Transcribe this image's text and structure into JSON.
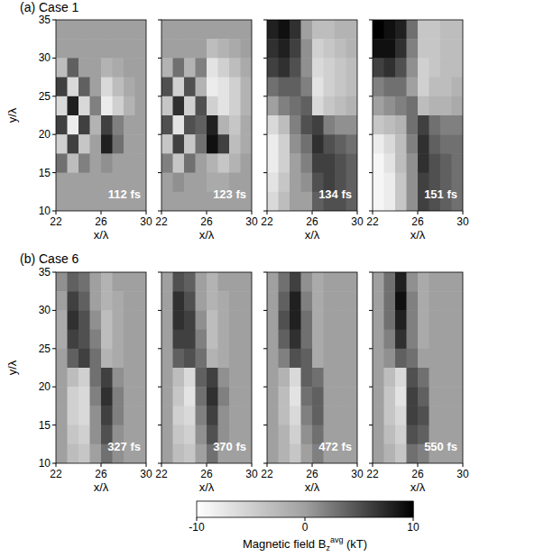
{
  "chart_data": {
    "type": "heatmap",
    "xlabel": "x/λ",
    "ylabel": "y/λ",
    "xlim": [
      22,
      30
    ],
    "xticks": [
      22,
      26,
      30
    ],
    "ylim": [
      10,
      35
    ],
    "yticks": [
      10,
      15,
      20,
      25,
      30,
      35
    ],
    "colorbar": {
      "range": [
        -10,
        10
      ],
      "ticks": [
        -10,
        0,
        10
      ],
      "label": {
        "text": "Magnetic field B",
        "sub": "z",
        "sup": "avg",
        "unit": " (kT)"
      }
    },
    "groups": [
      {
        "title": "(a) Case 1",
        "panels": [
          {
            "label": "112 fs",
            "cells": [
              [
                0,
                0,
                0,
                0,
                0,
                0,
                0,
                0
              ],
              [
                0,
                0,
                0,
                0,
                0,
                0,
                0,
                0
              ],
              [
                -3,
                4,
                0,
                0,
                -2,
                -1,
                0,
                0
              ],
              [
                6,
                -6,
                4,
                0,
                -6,
                -3,
                -1,
                0
              ],
              [
                -6,
                8,
                -6,
                2,
                -8,
                -5,
                -2,
                0
              ],
              [
                6,
                -8,
                6,
                -2,
                6,
                2,
                0,
                0
              ],
              [
                -5,
                6,
                -4,
                0,
                8,
                3,
                0,
                0
              ],
              [
                3,
                -3,
                2,
                0,
                1,
                0,
                0,
                0
              ],
              [
                0,
                0,
                0,
                0,
                0,
                0,
                0,
                0
              ],
              [
                0,
                0,
                0,
                0,
                0,
                0,
                0,
                0
              ]
            ]
          },
          {
            "label": "123 fs",
            "cells": [
              [
                0,
                0,
                0,
                0,
                0,
                0,
                0,
                0
              ],
              [
                0,
                0,
                0,
                0,
                -3,
                -2,
                -1,
                0
              ],
              [
                -2,
                3,
                -2,
                2,
                -7,
                -5,
                -3,
                -1
              ],
              [
                5,
                -5,
                5,
                -2,
                -8,
                -7,
                -5,
                -2
              ],
              [
                -4,
                7,
                -5,
                5,
                -5,
                -7,
                -5,
                -2
              ],
              [
                5,
                -7,
                5,
                4,
                8,
                -2,
                -4,
                -1
              ],
              [
                -4,
                6,
                -4,
                3,
                9,
                6,
                -3,
                -1
              ],
              [
                2,
                -4,
                3,
                0,
                -2,
                -4,
                -2,
                0
              ],
              [
                0,
                1,
                0,
                0,
                -1,
                -1,
                0,
                0
              ],
              [
                0,
                0,
                0,
                0,
                0,
                0,
                0,
                0
              ]
            ]
          },
          {
            "label": "134 fs",
            "cells": [
              [
                8,
                9,
                7,
                0,
                -3,
                -3,
                -2,
                -2
              ],
              [
                7,
                8,
                6,
                1,
                -5,
                -4,
                -3,
                -2
              ],
              [
                6,
                7,
                5,
                1,
                -6,
                -5,
                -4,
                -3
              ],
              [
                3,
                4,
                4,
                2,
                -7,
                -5,
                -4,
                -3
              ],
              [
                0,
                2,
                3,
                4,
                -6,
                -4,
                -3,
                -2
              ],
              [
                -6,
                -3,
                2,
                5,
                6,
                2,
                1,
                1
              ],
              [
                -8,
                -5,
                1,
                3,
                7,
                5,
                4,
                3
              ],
              [
                -8,
                -5,
                0,
                2,
                6,
                6,
                5,
                4
              ],
              [
                -7,
                -4,
                0,
                1,
                5,
                6,
                5,
                4
              ],
              [
                -6,
                -3,
                0,
                0,
                4,
                5,
                5,
                4
              ]
            ]
          },
          {
            "label": "151 fs",
            "cells": [
              [
                10,
                9,
                8,
                3,
                -4,
                -4,
                -3,
                -3
              ],
              [
                9,
                9,
                7,
                2,
                -4,
                -4,
                -3,
                -3
              ],
              [
                6,
                7,
                5,
                1,
                -5,
                -4,
                -3,
                -3
              ],
              [
                2,
                3,
                3,
                0,
                -5,
                -3,
                -3,
                -2
              ],
              [
                0,
                1,
                2,
                3,
                -3,
                -2,
                -2,
                -1
              ],
              [
                -4,
                -3,
                -2,
                3,
                6,
                3,
                2,
                2
              ],
              [
                -8,
                -6,
                -3,
                2,
                7,
                4,
                3,
                3
              ],
              [
                -9,
                -7,
                -3,
                1,
                7,
                5,
                4,
                3
              ],
              [
                -9,
                -8,
                -4,
                1,
                6,
                5,
                4,
                3
              ],
              [
                -9,
                -8,
                -4,
                1,
                6,
                5,
                4,
                3
              ]
            ]
          }
        ]
      },
      {
        "title": "(b) Case 6",
        "panels": [
          {
            "label": "327 fs",
            "cells": [
              [
                1,
                4,
                3,
                0,
                -2,
                0,
                0,
                0
              ],
              [
                0,
                6,
                4,
                0,
                -2,
                -1,
                0,
                0
              ],
              [
                -1,
                7,
                5,
                1,
                -3,
                -1,
                0,
                0
              ],
              [
                -1,
                6,
                5,
                2,
                -3,
                -1,
                0,
                0
              ],
              [
                0,
                4,
                6,
                3,
                -2,
                -1,
                0,
                0
              ],
              [
                0,
                -3,
                -5,
                3,
                6,
                1,
                0,
                0
              ],
              [
                0,
                -5,
                -6,
                2,
                7,
                2,
                0,
                0
              ],
              [
                0,
                -5,
                -6,
                1,
                6,
                2,
                0,
                0
              ],
              [
                0,
                -4,
                -5,
                1,
                5,
                1,
                0,
                0
              ],
              [
                0,
                -3,
                -4,
                0,
                3,
                1,
                0,
                0
              ]
            ]
          },
          {
            "label": "370 fs",
            "cells": [
              [
                0,
                5,
                4,
                0,
                -2,
                0,
                0,
                0
              ],
              [
                0,
                7,
                5,
                0,
                -2,
                -1,
                0,
                0
              ],
              [
                0,
                7,
                6,
                1,
                -3,
                -1,
                0,
                0
              ],
              [
                0,
                6,
                6,
                2,
                -3,
                -1,
                0,
                0
              ],
              [
                0,
                4,
                5,
                3,
                -2,
                -1,
                0,
                0
              ],
              [
                0,
                -3,
                -6,
                4,
                6,
                1,
                0,
                0
              ],
              [
                0,
                -4,
                -7,
                3,
                7,
                2,
                0,
                0
              ],
              [
                0,
                -5,
                -6,
                2,
                6,
                1,
                0,
                0
              ],
              [
                0,
                -4,
                -5,
                1,
                5,
                1,
                0,
                0
              ],
              [
                0,
                -3,
                -4,
                0,
                3,
                0,
                0,
                0
              ]
            ]
          },
          {
            "label": "472 fs",
            "cells": [
              [
                0,
                3,
                6,
                1,
                -1,
                0,
                0,
                0
              ],
              [
                0,
                4,
                8,
                2,
                -1,
                0,
                0,
                0
              ],
              [
                0,
                5,
                8,
                3,
                -1,
                0,
                0,
                0
              ],
              [
                0,
                4,
                7,
                3,
                -1,
                0,
                0,
                0
              ],
              [
                0,
                2,
                5,
                4,
                -1,
                0,
                0,
                0
              ],
              [
                0,
                -2,
                -6,
                4,
                3,
                0,
                0,
                0
              ],
              [
                0,
                -3,
                -7,
                3,
                4,
                0,
                0,
                0
              ],
              [
                0,
                -3,
                -6,
                2,
                4,
                0,
                0,
                0
              ],
              [
                0,
                -2,
                -5,
                1,
                3,
                0,
                0,
                0
              ],
              [
                0,
                -2,
                -4,
                0,
                2,
                0,
                0,
                0
              ]
            ]
          },
          {
            "label": "550 fs",
            "cells": [
              [
                0,
                3,
                8,
                1,
                -1,
                0,
                0,
                0
              ],
              [
                0,
                3,
                9,
                2,
                -1,
                0,
                0,
                0
              ],
              [
                0,
                3,
                8,
                2,
                -1,
                0,
                0,
                0
              ],
              [
                0,
                2,
                7,
                2,
                -1,
                0,
                0,
                0
              ],
              [
                0,
                1,
                4,
                3,
                0,
                0,
                0,
                0
              ],
              [
                0,
                -3,
                -6,
                5,
                3,
                0,
                0,
                0
              ],
              [
                0,
                -4,
                -7,
                6,
                4,
                0,
                0,
                0
              ],
              [
                0,
                -4,
                -6,
                6,
                5,
                0,
                0,
                0
              ],
              [
                0,
                -3,
                -5,
                5,
                4,
                0,
                0,
                0
              ],
              [
                0,
                -2,
                -4,
                3,
                2,
                0,
                0,
                0
              ]
            ]
          }
        ]
      }
    ]
  }
}
